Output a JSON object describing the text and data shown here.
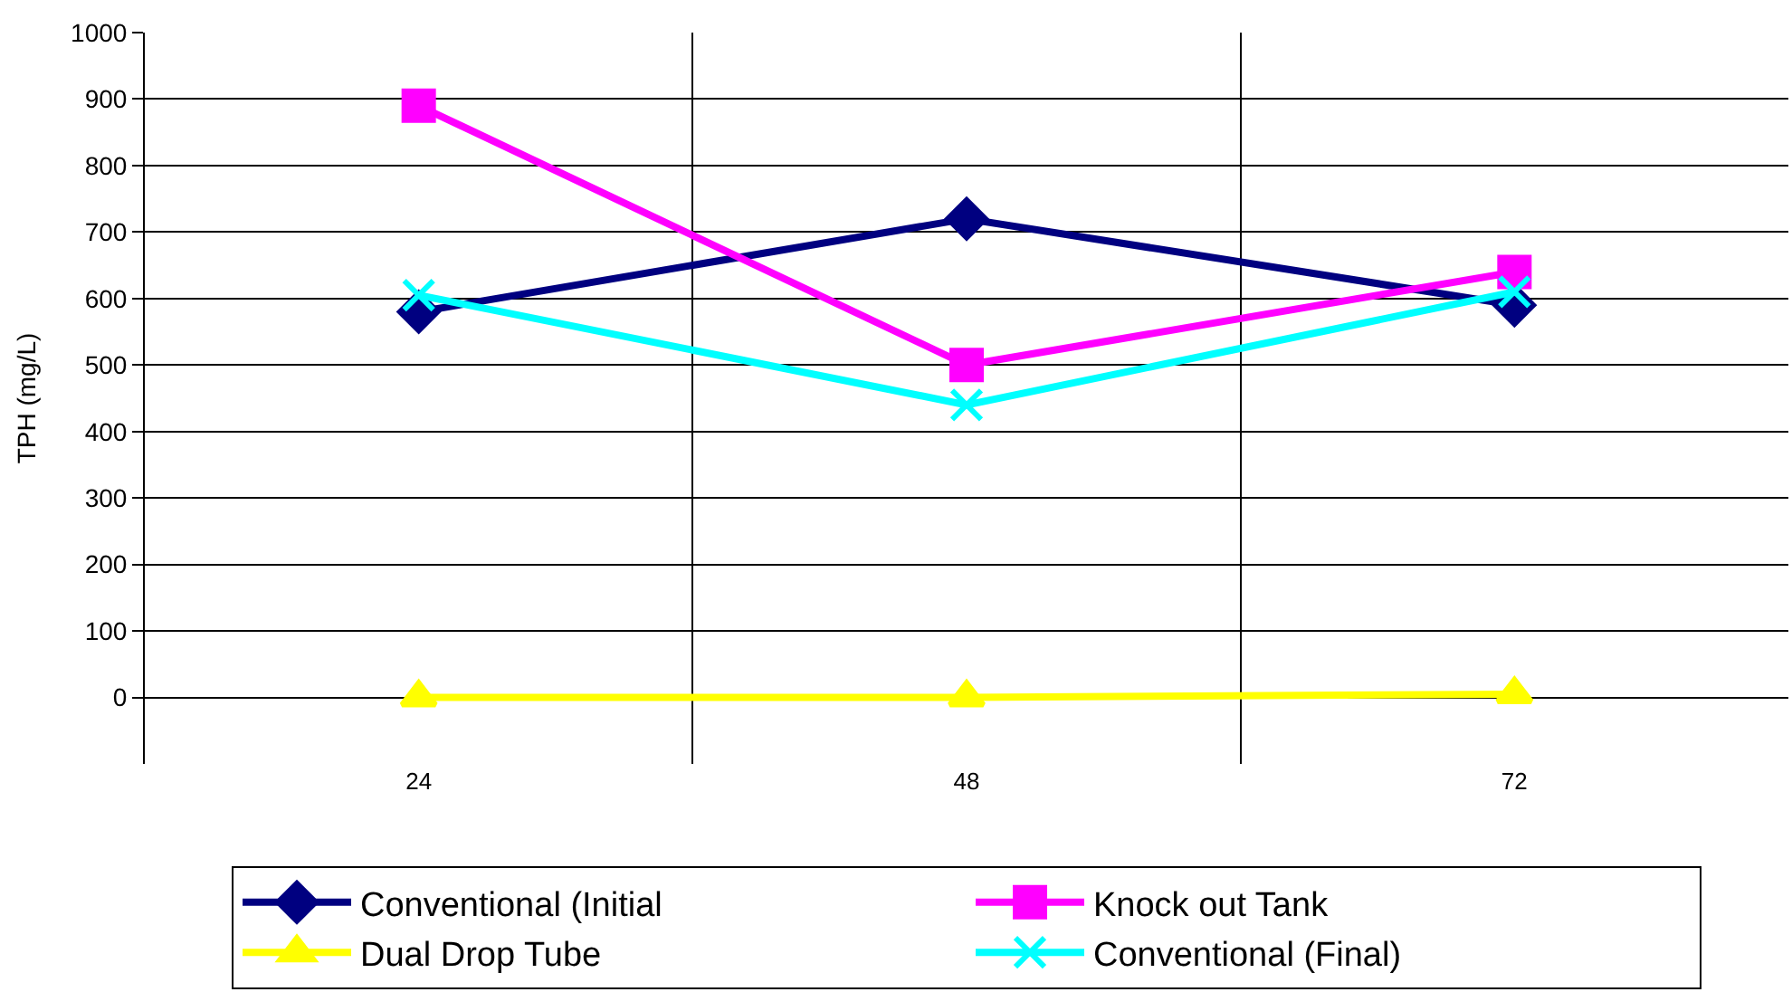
{
  "chart_data": {
    "type": "line",
    "ylabel": "TPH (mg/L)",
    "categories": [
      "24",
      "48",
      "72"
    ],
    "series": [
      {
        "name": "Conventional (Initial",
        "color": "#000080",
        "marker": "diamond",
        "values": [
          580,
          720,
          590
        ]
      },
      {
        "name": "Knock out Tank",
        "color": "#ff00ff",
        "marker": "square",
        "values": [
          890,
          500,
          640
        ]
      },
      {
        "name": "Dual Drop Tube",
        "color": "#ffff00",
        "marker": "triangle",
        "values": [
          0,
          0,
          5
        ]
      },
      {
        "name": "Conventional (Final)",
        "color": "#00ffff",
        "marker": "cross",
        "values": [
          605,
          440,
          610
        ]
      }
    ],
    "ylim": [
      -100,
      1000
    ],
    "yticks": [
      0,
      100,
      200,
      300,
      400,
      500,
      600,
      700,
      800,
      900,
      1000
    ],
    "grid": true,
    "legend": "bottom",
    "line_style": "solid"
  }
}
